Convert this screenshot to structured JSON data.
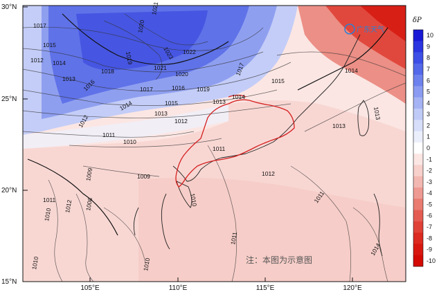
{
  "map": {
    "lat_labels": [
      "30°N",
      "25°N",
      "20°N",
      "15°N"
    ],
    "lon_labels": [
      "105°E",
      "110°E",
      "115°E",
      "120°E"
    ],
    "note": "注：本图为示意图",
    "logo_text": "广东天气",
    "contour_labels": [
      "1021",
      "1020",
      "1017",
      "1015",
      "1019",
      "1023",
      "1022",
      "1012",
      "1014",
      "1013",
      "1018",
      "1016",
      "1021",
      "1020",
      "1017",
      "1016",
      "1019",
      "1017",
      "1015",
      "1014",
      "1013",
      "1012",
      "1015",
      "1011",
      "1010",
      "1009",
      "1012",
      "1014",
      "1013",
      "1011",
      "1012",
      "1009",
      "1011",
      "1012",
      "1010",
      "1008",
      "1010",
      "1010",
      "1011",
      "1013",
      "1014",
      "1013",
      "1011",
      "1014",
      "1010"
    ],
    "colorbar": {
      "title": "δP",
      "ticks": [
        "10",
        "9",
        "8",
        "7",
        "6",
        "5",
        "4",
        "3",
        "2",
        "1",
        "0",
        "-1",
        "-2",
        "-3",
        "-4",
        "-5",
        "-6",
        "-7",
        "-8",
        "-9",
        "-10"
      ],
      "colors": [
        "#1a1ad6",
        "#2b35e0",
        "#3d4fe6",
        "#5468ea",
        "#6e82ee",
        "#8a9bf1",
        "#a5b3f4",
        "#bfcaf7",
        "#d7def9",
        "#ebeffc",
        "#ffffff",
        "#fbe6e4",
        "#f7d0cc",
        "#f3b7b1",
        "#ee9a92",
        "#e97b71",
        "#e45c51",
        "#e04137",
        "#dc2a20",
        "#d81810",
        "#d40a05"
      ]
    },
    "colors": {
      "frame": "#111111",
      "province_border": "#d42020"
    }
  }
}
